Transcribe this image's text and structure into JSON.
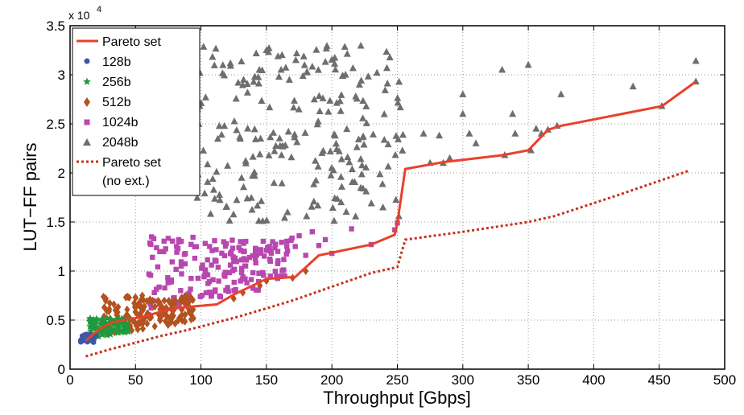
{
  "chart_data": {
    "type": "scatter",
    "title": "",
    "xlabel": "Throughput [Gbps]",
    "ylabel": "LUT−FF pairs",
    "y_multiplier_label": "x 10",
    "y_multiplier_exponent": "4",
    "xlim": [
      0,
      500
    ],
    "ylim": [
      0,
      35000
    ],
    "x_ticks": [
      "0",
      "50",
      "100",
      "150",
      "200",
      "250",
      "300",
      "350",
      "400",
      "450",
      "500"
    ],
    "y_ticks": [
      "0",
      "0.5",
      "1",
      "1.5",
      "2",
      "2.5",
      "3",
      "3.5"
    ],
    "grid": "dotted",
    "legend_position": "top-left",
    "legend": [
      "Pareto set",
      "128b",
      "256b",
      "512b",
      "1024b",
      "2048b",
      "Pareto set",
      "(no ext.)"
    ],
    "colors": {
      "pareto": "#e8412c",
      "b128": "#3e56a8",
      "b256": "#1f9a3c",
      "b512": "#b3521f",
      "b1024": "#b847b0",
      "b2048": "#6e6e6e"
    },
    "series": [
      {
        "name": "Pareto set",
        "kind": "line",
        "style": "solid",
        "x": [
          12,
          18,
          25,
          33,
          45,
          55,
          68,
          80,
          95,
          112,
          125,
          150,
          172,
          190,
          230,
          248,
          250,
          256,
          285,
          330,
          350,
          365,
          375,
          452,
          478
        ],
        "y": [
          2900,
          3600,
          4300,
          4800,
          5100,
          5300,
          5800,
          6200,
          6400,
          6600,
          7600,
          9200,
          9400,
          11600,
          12700,
          13700,
          14900,
          20400,
          21100,
          21800,
          22300,
          24400,
          24800,
          26800,
          29300
        ]
      },
      {
        "name": "Pareto set (no ext.)",
        "kind": "line",
        "style": "dotted",
        "x": [
          12,
          30,
          50,
          70,
          90,
          110,
          130,
          150,
          170,
          200,
          230,
          250,
          256,
          300,
          350,
          370,
          420,
          472
        ],
        "y": [
          1300,
          2000,
          2700,
          3400,
          4000,
          4700,
          5400,
          6200,
          7000,
          8400,
          9800,
          10400,
          13200,
          14000,
          15000,
          15600,
          17800,
          20200
        ]
      },
      {
        "name": "128b",
        "kind": "scatter",
        "marker": "circle",
        "cluster": {
          "x_range": [
            8,
            20
          ],
          "y_range": [
            2700,
            3600
          ],
          "count": 40
        }
      },
      {
        "name": "256b",
        "kind": "scatter",
        "marker": "star",
        "cluster": {
          "x_range": [
            15,
            45
          ],
          "y_range": [
            3000,
            5200
          ],
          "count": 90
        }
      },
      {
        "name": "512b",
        "kind": "scatter",
        "marker": "diamond",
        "cluster": {
          "x_range": [
            25,
            95
          ],
          "y_range": [
            3500,
            7500
          ],
          "count": 160
        },
        "points": {
          "x": [
            125,
            132,
            145,
            150,
            170,
            180
          ],
          "y": [
            7200,
            7800,
            8500,
            9000,
            9300,
            10000
          ]
        }
      },
      {
        "name": "1024b",
        "kind": "scatter",
        "marker": "square",
        "cluster": {
          "x_range": [
            60,
            170
          ],
          "y_range": [
            6000,
            13500
          ],
          "count": 190
        },
        "points": {
          "x": [
            172,
            175,
            180,
            185,
            190,
            195,
            200,
            215,
            230,
            248,
            250
          ],
          "y": [
            12500,
            13600,
            11600,
            14000,
            12600,
            13200,
            11800,
            14300,
            12700,
            14200,
            14900
          ]
        }
      },
      {
        "name": "2048b",
        "kind": "scatter",
        "marker": "triangle",
        "cluster": {
          "x_range": [
            95,
            255
          ],
          "y_range": [
            15000,
            33000
          ],
          "count": 230
        },
        "points": {
          "x": [
            270,
            275,
            282,
            285,
            290,
            300,
            300,
            305,
            310,
            330,
            332,
            338,
            340,
            350,
            352,
            356,
            360,
            365,
            372,
            375,
            430,
            452,
            478,
            478,
            150
          ],
          "y": [
            24000,
            21000,
            23800,
            21000,
            21500,
            26000,
            28000,
            24000,
            23000,
            30500,
            21800,
            26000,
            24000,
            31000,
            22300,
            24500,
            24000,
            24400,
            24800,
            28000,
            28800,
            26800,
            29300,
            31400,
            32500
          ]
        }
      }
    ]
  }
}
